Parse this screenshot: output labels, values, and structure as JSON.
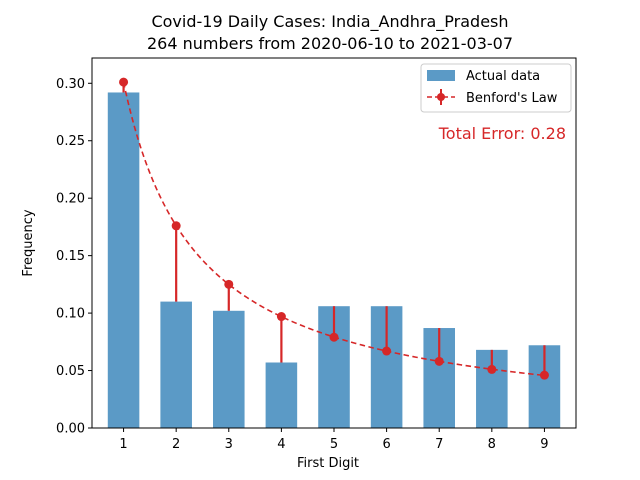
{
  "chart_data": {
    "type": "bar",
    "title": "Covid-19 Daily Cases: India_Andhra_Pradesh",
    "subtitle": "264 numbers from 2020-06-10 to 2021-03-07",
    "xlabel": "First Digit",
    "ylabel": "Frequency",
    "categories": [
      "1",
      "2",
      "3",
      "4",
      "5",
      "6",
      "7",
      "8",
      "9"
    ],
    "x": [
      1,
      2,
      3,
      4,
      5,
      6,
      7,
      8,
      9
    ],
    "ylim": [
      0,
      0.322
    ],
    "yticks": [
      "0.00",
      "0.05",
      "0.10",
      "0.15",
      "0.20",
      "0.25",
      "0.30"
    ],
    "grid": false,
    "legend_position": "top-right",
    "annotation": "Total Error: 0.28",
    "series": [
      {
        "name": "Actual data",
        "kind": "bar",
        "color": "#5b9ac6",
        "values": [
          0.292,
          0.11,
          0.102,
          0.057,
          0.106,
          0.106,
          0.087,
          0.068,
          0.072
        ]
      },
      {
        "name": "Benford's Law",
        "kind": "line-dashed-markers",
        "color": "#d62728",
        "values": [
          0.301,
          0.176,
          0.125,
          0.097,
          0.079,
          0.067,
          0.058,
          0.051,
          0.046
        ]
      }
    ]
  }
}
